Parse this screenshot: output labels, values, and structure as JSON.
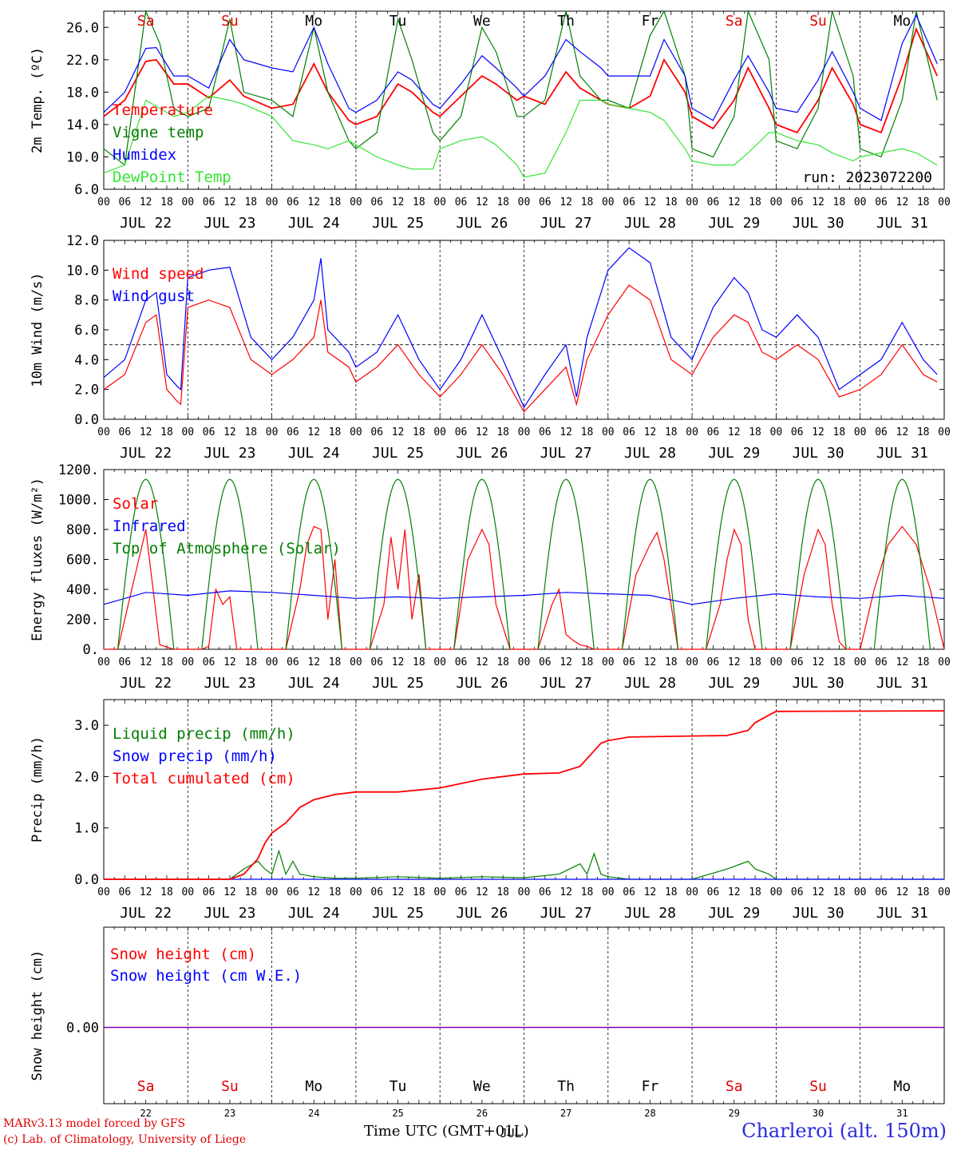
{
  "run_label": "run: 2023072200",
  "credits": [
    "MARv3.13 model forced by GFS",
    "(c) Lab. of Climatology, University of Liege"
  ],
  "station": "Charleroi (alt. 150m)",
  "x_axis_title": "Time UTC (GMT+01L)",
  "x_axis_overlay": "JUL",
  "days": [
    "22",
    "23",
    "24",
    "25",
    "26",
    "27",
    "28",
    "29",
    "30",
    "31"
  ],
  "day_labels": [
    "JUL 22",
    "JUL 23",
    "JUL 24",
    "JUL 25",
    "JUL 26",
    "JUL 27",
    "JUL 28",
    "JUL 29",
    "JUL 30",
    "JUL 31"
  ],
  "weekdays": [
    "Sa",
    "Su",
    "Mo",
    "Tu",
    "We",
    "Th",
    "Fr",
    "Sa",
    "Su",
    "Mo"
  ],
  "weekend_color": "#e00000",
  "hour_ticks": [
    "00",
    "06",
    "12",
    "18"
  ],
  "colors": {
    "red": "#ff0000",
    "green": "#007f00",
    "blue": "#0000ff",
    "lightgreen": "#32e632",
    "purple": "#7f00bf"
  },
  "chart_data": [
    {
      "type": "line",
      "ylabel": "2m Temp. (ºC)",
      "ylim": [
        6,
        28
      ],
      "yticks": [
        "6.0",
        "10.0",
        "14.0",
        "18.0",
        "22.0",
        "26.0"
      ],
      "x_unit": "hours since JUL 22 00 UTC",
      "series": [
        {
          "name": "Temperature",
          "color": "#ff0000",
          "x": [
            0,
            6,
            12,
            15,
            20,
            24,
            30,
            36,
            40,
            48,
            54,
            60,
            64,
            70,
            72,
            78,
            84,
            88,
            94,
            96,
            102,
            108,
            112,
            118,
            120,
            126,
            132,
            136,
            142,
            144,
            150,
            156,
            160,
            166,
            168,
            174,
            180,
            184,
            190,
            192,
            198,
            204,
            208,
            214,
            216,
            222,
            228,
            232,
            238
          ],
          "y": [
            15,
            17,
            21.8,
            22,
            19,
            19,
            17.3,
            19.5,
            17.5,
            16,
            16.5,
            21.5,
            18,
            14.5,
            14,
            15,
            19,
            18,
            15.5,
            15,
            17.5,
            20,
            19,
            17,
            17.5,
            16.5,
            20.5,
            18.5,
            17,
            16.5,
            16,
            17.5,
            22,
            18,
            15,
            13.5,
            17,
            21,
            16,
            14,
            13,
            17,
            21,
            16.5,
            14,
            13,
            20,
            25.8,
            20
          ]
        },
        {
          "name": "Vigne temp",
          "color": "#007f00",
          "x": [
            0,
            6,
            12,
            16,
            20,
            24,
            30,
            36,
            40,
            48,
            54,
            60,
            64,
            70,
            72,
            78,
            84,
            88,
            94,
            96,
            102,
            108,
            112,
            118,
            120,
            126,
            132,
            136,
            142,
            144,
            150,
            156,
            160,
            166,
            168,
            174,
            180,
            184,
            190,
            192,
            198,
            204,
            208,
            214,
            216,
            222,
            228,
            232,
            238
          ],
          "y": [
            11,
            9,
            28,
            24,
            16,
            15,
            16,
            27,
            18,
            17,
            15,
            26,
            18,
            12,
            11,
            13,
            27,
            22,
            13,
            12,
            15,
            26,
            23,
            15,
            15,
            17,
            28,
            20,
            17,
            17,
            16,
            25,
            28,
            20,
            11,
            10,
            15,
            28,
            22,
            12,
            11,
            16,
            28,
            20,
            11,
            10,
            17,
            28,
            17
          ]
        },
        {
          "name": "Humidex",
          "color": "#0000ff",
          "x": [
            0,
            6,
            12,
            15,
            20,
            24,
            30,
            36,
            40,
            48,
            54,
            60,
            64,
            70,
            72,
            78,
            84,
            88,
            94,
            96,
            102,
            108,
            112,
            118,
            120,
            126,
            132,
            136,
            142,
            144,
            150,
            156,
            160,
            166,
            168,
            174,
            180,
            184,
            190,
            192,
            198,
            204,
            208,
            214,
            216,
            222,
            228,
            232,
            238
          ],
          "y": [
            15.5,
            18,
            23.4,
            23.5,
            20,
            20,
            18.5,
            24.5,
            22,
            21,
            20.5,
            26,
            21.5,
            16,
            15.5,
            17,
            20.5,
            19.5,
            16.5,
            16,
            19,
            22.5,
            21,
            18.5,
            17.5,
            20,
            24.5,
            23,
            21,
            20,
            20,
            20,
            24.5,
            20,
            16,
            14.5,
            19.5,
            22.5,
            18,
            16,
            15.5,
            19.5,
            23,
            18,
            16,
            14.5,
            24,
            27.5,
            21.5
          ]
        },
        {
          "name": "DewPoint Temp",
          "color": "#32e632",
          "x": [
            0,
            6,
            12,
            16,
            20,
            24,
            30,
            36,
            40,
            48,
            54,
            60,
            64,
            70,
            72,
            78,
            84,
            88,
            94,
            96,
            102,
            108,
            112,
            118,
            120,
            126,
            132,
            136,
            142,
            144,
            150,
            156,
            160,
            166,
            168,
            174,
            180,
            184,
            190,
            192,
            198,
            204,
            208,
            214,
            216,
            222,
            228,
            232,
            238
          ],
          "y": [
            8,
            9,
            17,
            16,
            15,
            15.5,
            17.5,
            17,
            16.5,
            15,
            12,
            11.5,
            11,
            12,
            11.5,
            10,
            9,
            8.5,
            8.5,
            11,
            12,
            12.5,
            11.5,
            9,
            7.5,
            8,
            13,
            17,
            17,
            16.5,
            16,
            15.5,
            14.5,
            11,
            9.5,
            9,
            9,
            10.5,
            13,
            13,
            12,
            11.5,
            10.5,
            9.5,
            10,
            10.5,
            11,
            10.5,
            9
          ]
        }
      ]
    },
    {
      "type": "line",
      "ylabel": "10m Wind (m/s)",
      "ylim": [
        0,
        12
      ],
      "yticks": [
        "0.0",
        "2.0",
        "4.0",
        "6.0",
        "8.0",
        "10.0",
        "12.0"
      ],
      "reference_line": 5,
      "series": [
        {
          "name": "Wind speed",
          "color": "#ff0000",
          "x": [
            0,
            6,
            12,
            15,
            18,
            21,
            22,
            24,
            30,
            36,
            42,
            48,
            54,
            60,
            62,
            64,
            70,
            72,
            78,
            84,
            90,
            96,
            102,
            108,
            114,
            120,
            126,
            132,
            135,
            138,
            144,
            150,
            156,
            162,
            168,
            174,
            180,
            184,
            188,
            192,
            198,
            204,
            210,
            216,
            222,
            228,
            234,
            238
          ],
          "y": [
            2,
            3,
            6.5,
            7,
            2,
            1.2,
            1,
            7.5,
            8,
            7.5,
            4,
            3,
            4,
            5.5,
            8,
            4.5,
            3.5,
            2.5,
            3.5,
            5,
            3,
            1.5,
            3,
            5,
            3,
            0.5,
            2,
            3.5,
            1,
            4,
            7,
            9,
            8,
            4,
            3,
            5.5,
            7,
            6.5,
            4.5,
            4,
            5,
            4,
            1.5,
            2,
            3,
            5,
            3,
            2.5
          ]
        },
        {
          "name": "Wind gust",
          "color": "#0000ff",
          "x": [
            0,
            6,
            12,
            15,
            18,
            21,
            22,
            24,
            30,
            36,
            42,
            48,
            54,
            60,
            62,
            64,
            70,
            72,
            78,
            84,
            90,
            96,
            102,
            108,
            114,
            120,
            126,
            132,
            135,
            138,
            144,
            150,
            156,
            162,
            168,
            174,
            180,
            184,
            188,
            192,
            198,
            204,
            210,
            216,
            222,
            228,
            234,
            238
          ],
          "y": [
            2.8,
            4,
            8,
            8.5,
            3,
            2.2,
            2,
            9.5,
            10,
            10.2,
            5.5,
            4,
            5.5,
            8,
            10.8,
            6,
            4.5,
            3.5,
            4.5,
            7,
            4,
            2,
            4,
            7,
            4,
            0.8,
            3,
            5,
            1.5,
            5.5,
            10,
            11.5,
            10.5,
            5.5,
            4,
            7.5,
            9.5,
            8.5,
            6,
            5.5,
            7,
            5.5,
            2,
            3,
            4,
            6.5,
            4,
            3
          ]
        }
      ]
    },
    {
      "type": "line",
      "ylabel": "Energy fluxes (W/m²)",
      "ylim": [
        0,
        1200
      ],
      "yticks": [
        "0.",
        "200.",
        "400.",
        "600.",
        "800.",
        "1000.",
        "1200."
      ],
      "series": [
        {
          "name": "Solar",
          "color": "#ff0000",
          "x": [
            0,
            4,
            8,
            12,
            16,
            20,
            24,
            28,
            30,
            32,
            34,
            36,
            38,
            40,
            44,
            48,
            52,
            56,
            58,
            60,
            62,
            64,
            66,
            68,
            72,
            76,
            80,
            82,
            84,
            86,
            88,
            90,
            92,
            96,
            100,
            104,
            108,
            110,
            112,
            116,
            120,
            124,
            128,
            130,
            132,
            134,
            136,
            138,
            140,
            144,
            148,
            152,
            156,
            158,
            160,
            164,
            168,
            172,
            176,
            178,
            180,
            182,
            184,
            186,
            188,
            192,
            196,
            200,
            204,
            206,
            208,
            210,
            212,
            216,
            220,
            224,
            228,
            232,
            236,
            240
          ],
          "y": [
            0,
            0,
            400,
            800,
            30,
            0,
            0,
            0,
            20,
            400,
            300,
            350,
            0,
            0,
            0,
            0,
            0,
            400,
            700,
            820,
            800,
            200,
            600,
            0,
            0,
            0,
            300,
            750,
            400,
            800,
            200,
            500,
            0,
            0,
            0,
            600,
            800,
            700,
            300,
            0,
            0,
            0,
            300,
            400,
            100,
            60,
            30,
            20,
            0,
            0,
            0,
            500,
            700,
            780,
            600,
            0,
            0,
            0,
            300,
            600,
            800,
            700,
            200,
            0,
            0,
            0,
            0,
            500,
            800,
            700,
            300,
            50,
            0,
            0,
            400,
            700,
            820,
            700,
            400,
            0
          ]
        },
        {
          "name": "Infrared",
          "color": "#0000ff",
          "x": [
            0,
            12,
            24,
            36,
            48,
            60,
            72,
            84,
            96,
            108,
            120,
            132,
            144,
            156,
            168,
            180,
            192,
            204,
            216,
            228,
            240
          ],
          "y": [
            300,
            380,
            360,
            390,
            380,
            360,
            340,
            350,
            340,
            350,
            360,
            380,
            370,
            360,
            300,
            340,
            370,
            350,
            340,
            360,
            340
          ]
        },
        {
          "name": "Top of Atmosphere (Solar)",
          "color": "#007f00",
          "peak": 1135
        }
      ]
    },
    {
      "type": "line",
      "ylabel": "Precip (mm/h)",
      "ylim": [
        0,
        3.5
      ],
      "yticks": [
        "0.0",
        "1.0",
        "2.0",
        "3.0"
      ],
      "series": [
        {
          "name": "Liquid precip (mm/h)",
          "color": "#007f00",
          "x": [
            0,
            36,
            40,
            44,
            46,
            48,
            50,
            52,
            54,
            56,
            60,
            66,
            72,
            84,
            96,
            108,
            120,
            130,
            136,
            138,
            140,
            142,
            144,
            150,
            168,
            178,
            184,
            186,
            190,
            192,
            240
          ],
          "y": [
            0,
            0,
            0.2,
            0.35,
            0.2,
            0.1,
            0.55,
            0.1,
            0.35,
            0.1,
            0.05,
            0.02,
            0.02,
            0.05,
            0.02,
            0.05,
            0.03,
            0.1,
            0.3,
            0.1,
            0.5,
            0.1,
            0.05,
            0,
            0,
            0.2,
            0.35,
            0.2,
            0.1,
            0,
            0
          ]
        },
        {
          "name": "Snow precip (mm/h)",
          "color": "#0000ff",
          "x": [
            0,
            240
          ],
          "y": [
            0,
            0
          ]
        },
        {
          "name": "Total cumulated (cm)",
          "color": "#ff0000",
          "x": [
            0,
            36,
            40,
            44,
            46,
            48,
            50,
            52,
            56,
            60,
            66,
            72,
            84,
            96,
            108,
            120,
            130,
            136,
            138,
            140,
            142,
            144,
            150,
            168,
            178,
            184,
            186,
            190,
            192,
            240
          ],
          "y": [
            0,
            0,
            0.1,
            0.4,
            0.7,
            0.9,
            1.0,
            1.1,
            1.4,
            1.55,
            1.65,
            1.7,
            1.7,
            1.78,
            1.95,
            2.05,
            2.07,
            2.2,
            2.35,
            2.5,
            2.65,
            2.7,
            2.77,
            2.79,
            2.8,
            2.9,
            3.05,
            3.2,
            3.27,
            3.28
          ]
        }
      ]
    },
    {
      "type": "line",
      "ylabel": "Snow height (cm)",
      "yticks": [
        "0.00"
      ],
      "series": [
        {
          "name": "Snow height (cm)",
          "color": "#ff0000",
          "x": [
            0,
            240
          ],
          "y": [
            0,
            0
          ]
        },
        {
          "name": "Snow height (cm W.E.)",
          "color": "#0000ff",
          "x": [
            0,
            240
          ],
          "y": [
            0,
            0
          ]
        }
      ]
    }
  ]
}
